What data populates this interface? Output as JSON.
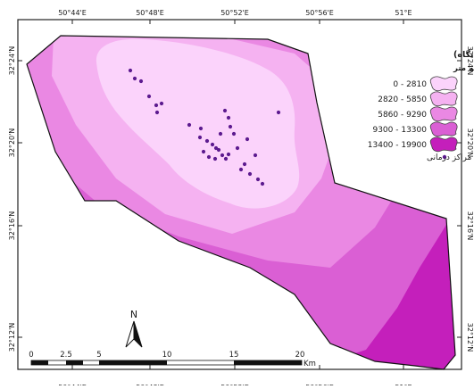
{
  "map": {
    "lon_labels": [
      "50°44'E",
      "50°48'E",
      "50°52'E",
      "50°56'E",
      "51°E"
    ],
    "lat_labels": [
      "32°24'N",
      "32°20'N",
      "32°16'N",
      "32°12'N"
    ],
    "legend": {
      "title": "فاصله از مراکز درمانی (کلینیک و درمانگاه)",
      "subtitle": "به متر",
      "classes": [
        {
          "label": "0 - 2810",
          "color": "#fbd3fb"
        },
        {
          "label": "2820 - 5850",
          "color": "#f5b2f1"
        },
        {
          "label": "5860 - 9290",
          "color": "#ea88e3"
        },
        {
          "label": "9300 - 13300",
          "color": "#da5fd4"
        },
        {
          "label": "13400 - 19900",
          "color": "#c41fbb"
        }
      ],
      "point_label": "مراکز درمانی",
      "point_color": "#5c1a8f"
    },
    "north_label": "N",
    "scale_bar": {
      "ticks": [
        "0",
        "2.5",
        "5",
        "10",
        "15",
        "20"
      ],
      "unit": "Km"
    }
  }
}
